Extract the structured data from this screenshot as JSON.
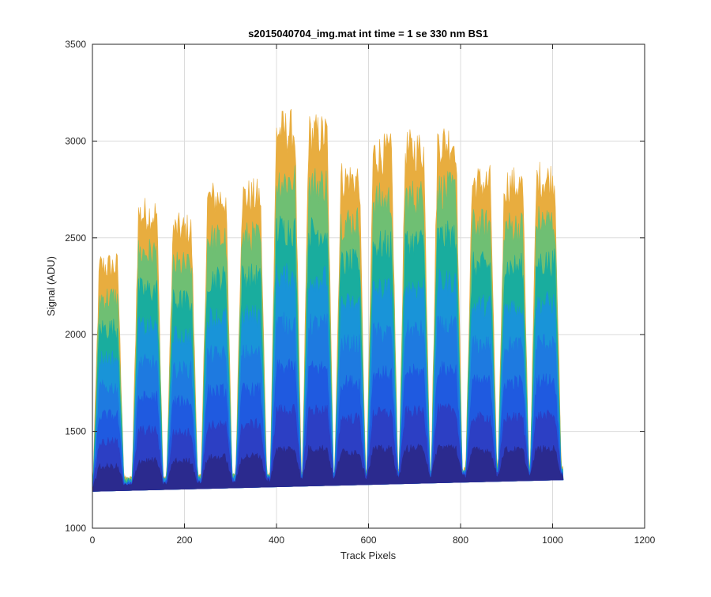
{
  "figure": {
    "title": "s2015040704_img.mat int time = 1 se  330 nm BS1"
  },
  "chart_data": {
    "type": "line",
    "title": "s2015040704_img.mat int time = 1 se  330 nm BS1",
    "xlabel": "Track Pixels",
    "ylabel": "Signal (ADU)",
    "xlim": [
      0,
      1200
    ],
    "ylim": [
      1000,
      3500
    ],
    "xticks": [
      "0",
      "200",
      "400",
      "600",
      "800",
      "1000",
      "1200"
    ],
    "yticks": [
      "1000",
      "1500",
      "2000",
      "2500",
      "3000",
      "3500"
    ],
    "grid": true,
    "x_range": [
      0,
      1024
    ],
    "track_pixels": 1024,
    "bands": [
      {
        "center": 35,
        "peak": 2350
      },
      {
        "center": 120,
        "peak": 2620
      },
      {
        "center": 195,
        "peak": 2540
      },
      {
        "center": 270,
        "peak": 2700
      },
      {
        "center": 345,
        "peak": 2710
      },
      {
        "center": 420,
        "peak": 3050
      },
      {
        "center": 490,
        "peak": 3030
      },
      {
        "center": 560,
        "peak": 2800
      },
      {
        "center": 630,
        "peak": 2930
      },
      {
        "center": 700,
        "peak": 2950
      },
      {
        "center": 770,
        "peak": 2990
      },
      {
        "center": 845,
        "peak": 2780
      },
      {
        "center": 915,
        "peak": 2770
      },
      {
        "center": 985,
        "peak": 2800
      }
    ],
    "baseline": {
      "start": 1210,
      "mid": 1250,
      "end": 1270
    },
    "series_count": 8,
    "colormap": [
      "#2b2a8e",
      "#2c3fc4",
      "#1f5ae0",
      "#1e7ae0",
      "#1994d8",
      "#19ad9e",
      "#6fbf73",
      "#e8ad3f"
    ]
  }
}
